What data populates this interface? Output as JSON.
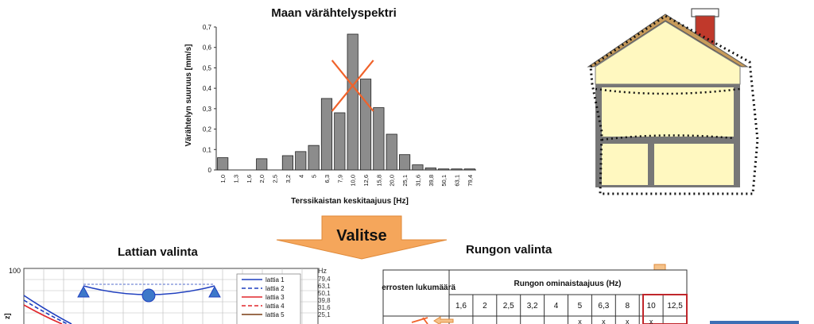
{
  "chart_data": {
    "type": "bar",
    "title": "Maan värähtelyspektri",
    "xlabel": "Terssikaistan keskitaajuus [Hz]",
    "ylabel": "Värähtelyn suuruus [mm/s]",
    "ylim": [
      0,
      0.7
    ],
    "yticks": [
      "0",
      "0,1",
      "0,2",
      "0,3",
      "0,4",
      "0,5",
      "0,6",
      "0,7"
    ],
    "categories": [
      "1,0",
      "1,3",
      "1,6",
      "2,0",
      "2,5",
      "3,2",
      "4",
      "5",
      "6,3",
      "7,9",
      "10,0",
      "12,6",
      "15,8",
      "20,0",
      "25,1",
      "31,6",
      "39,8",
      "50,1",
      "63,1",
      "79,4"
    ],
    "values": [
      0.06,
      0,
      0,
      0.055,
      0,
      0.07,
      0.09,
      0.12,
      0.35,
      0.28,
      0.665,
      0.445,
      0.305,
      0.175,
      0.075,
      0.025,
      0.01,
      0.005,
      0.005,
      0.005
    ],
    "grid": false,
    "annotation": "cross-mark over peak"
  },
  "arrow_label": "Valitse",
  "floor": {
    "title": "Lattian valinta",
    "y_top_tick": "100",
    "y_label_fragment": "z]",
    "legend": [
      "lattia 1",
      "lattia 2",
      "lattia 3",
      "lattia 4",
      "lattia 5"
    ],
    "legend_colors": [
      "#1f3fbf",
      "#1f3fbf",
      "#e0262b",
      "#e0262b",
      "#7a3b12"
    ],
    "hz_unit": "Hz",
    "hz_values": [
      "79,4",
      "63,1",
      "50,1",
      "39,8",
      "31,6",
      "25,1"
    ]
  },
  "frame": {
    "title": "Rungon valinta",
    "col1_header": "Kerrosten lukumäärä",
    "group_header": "Rungon ominaistaajuus (Hz)",
    "frequencies": [
      "1,6",
      "2",
      "2,5",
      "3,2",
      "4",
      "5",
      "6,3",
      "8",
      "10",
      "12,5"
    ],
    "row_marks": [
      "x",
      "x",
      "x",
      "x"
    ],
    "highlight_color": "#c0262b"
  },
  "colors": {
    "bar_fill": "#8c8c8c",
    "cross": "#f0622a",
    "arrow": "#f5a65b",
    "house_wall": "#fff8c0",
    "chimney": "#c0392b",
    "house_outline": "#7a7a7a",
    "blue_box": "#3c6fb5"
  }
}
